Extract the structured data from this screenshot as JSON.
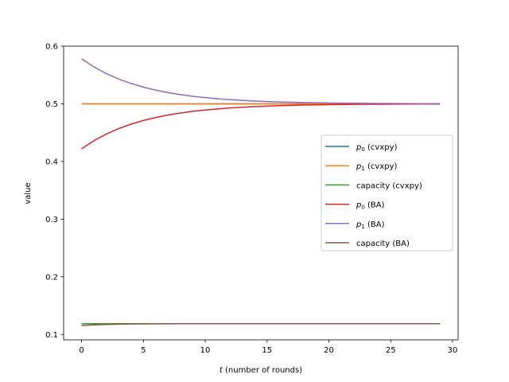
{
  "chart_data": {
    "type": "line",
    "xlabel_italic": "t",
    "xlabel_rest": " (number of rounds)",
    "ylabel": "value",
    "xlim": [
      -1.45,
      30.45
    ],
    "ylim": [
      0.0907,
      0.6
    ],
    "xticks": [
      0,
      5,
      10,
      15,
      20,
      25,
      30
    ],
    "yticks": [
      0.1,
      0.2,
      0.3,
      0.4,
      0.5,
      0.6
    ],
    "legend_position": "center-right",
    "series": [
      {
        "key": "p0_cvxpy",
        "name_base": "p",
        "name_sub": "0",
        "name_rest": " (cvxpy)",
        "color": "#1f77b4",
        "kind": "constant",
        "value": 0.5
      },
      {
        "key": "p1_cvxpy",
        "name_base": "p",
        "name_sub": "1",
        "name_rest": " (cvxpy)",
        "color": "#ff7f0e",
        "kind": "constant",
        "value": 0.5
      },
      {
        "key": "cap_cvxpy",
        "name_base": "capacity (cvxpy)",
        "name_sub": "",
        "name_rest": "",
        "color": "#2ca02c",
        "kind": "constant",
        "value": 0.1187
      },
      {
        "key": "p0_ba",
        "name_base": "p",
        "name_sub": "0",
        "name_rest": " (BA)",
        "color": "#d62728",
        "kind": "decay",
        "start": 0.422,
        "end": 0.5,
        "rate": 0.82
      },
      {
        "key": "p1_ba",
        "name_base": "p",
        "name_sub": "1",
        "name_rest": " (BA)",
        "color": "#9467bd",
        "kind": "decay",
        "start": 0.578,
        "end": 0.5,
        "rate": 0.82
      },
      {
        "key": "cap_ba",
        "name_base": "capacity (BA)",
        "name_sub": "",
        "name_rest": "",
        "color": "#8c564b",
        "kind": "decay",
        "start": 0.1155,
        "end": 0.1187,
        "rate": 0.65
      }
    ],
    "n_points": 30
  }
}
